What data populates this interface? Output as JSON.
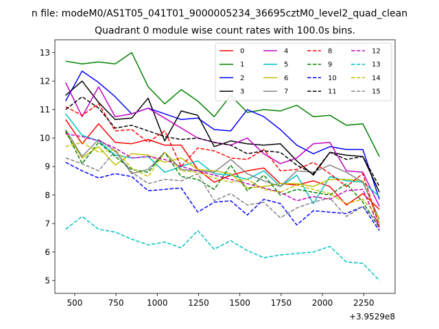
{
  "figure": {
    "suptitle": "n file: modeM0/AS1T05_041T01_9000005234_36695cztM0_level2_quad_clean"
  },
  "chart_data": {
    "type": "line",
    "title": "Quadrant 0 module wise count rates with 100.0s bins.",
    "xlabel": "",
    "ylabel": "",
    "x_offset_label": "+3.9529e8",
    "xlim": [
      380,
      2440
    ],
    "ylim": [
      4.55,
      13.45
    ],
    "x_ticks": [
      500,
      750,
      1000,
      1250,
      1500,
      1750,
      2000,
      2250
    ],
    "y_ticks": [
      5,
      6,
      7,
      8,
      9,
      10,
      11,
      12,
      13
    ],
    "grid": false,
    "legend": {
      "placement": "top-right",
      "columns": 4
    },
    "x": [
      445,
      545,
      645,
      745,
      845,
      945,
      1045,
      1145,
      1245,
      1345,
      1445,
      1545,
      1645,
      1745,
      1845,
      1945,
      2045,
      2145,
      2245,
      2345
    ],
    "series": [
      {
        "name": "0",
        "color": "#ff0000",
        "dash": "solid",
        "values": [
          10.65,
          9.8,
          10.5,
          9.85,
          9.8,
          9.95,
          9.75,
          9.75,
          8.9,
          8.45,
          8.7,
          8.85,
          8.95,
          8.4,
          8.35,
          8.5,
          8.3,
          7.65,
          8.05,
          7.5
        ]
      },
      {
        "name": "1",
        "color": "#008000",
        "dash": "solid",
        "values": [
          12.7,
          12.6,
          12.67,
          12.6,
          13.0,
          11.8,
          11.2,
          11.7,
          11.3,
          10.75,
          11.5,
          10.9,
          11.0,
          10.95,
          11.15,
          10.75,
          10.8,
          10.45,
          10.5,
          9.35
        ]
      },
      {
        "name": "2",
        "color": "#0000ff",
        "dash": "solid",
        "values": [
          11.3,
          12.35,
          11.95,
          11.45,
          10.85,
          11.05,
          10.85,
          10.65,
          10.7,
          10.3,
          10.25,
          11.0,
          10.75,
          10.3,
          9.75,
          9.45,
          9.7,
          9.6,
          9.6,
          7.85
        ]
      },
      {
        "name": "3",
        "color": "#000000",
        "dash": "solid",
        "values": [
          11.5,
          12.0,
          11.25,
          10.65,
          10.7,
          11.4,
          9.9,
          10.95,
          10.8,
          9.7,
          9.9,
          9.8,
          9.75,
          9.8,
          9.2,
          8.7,
          9.5,
          9.4,
          9.35,
          8.1
        ]
      },
      {
        "name": "4",
        "color": "#bf00bf",
        "dash": "solid",
        "values": [
          11.95,
          10.75,
          11.8,
          10.75,
          10.85,
          11.05,
          10.7,
          10.35,
          10.0,
          9.85,
          9.75,
          10.0,
          9.45,
          9.1,
          9.3,
          9.8,
          9.85,
          8.85,
          8.8,
          7.6
        ]
      },
      {
        "name": "5",
        "color": "#00bfbf",
        "dash": "solid",
        "values": [
          10.85,
          10.1,
          9.9,
          9.4,
          9.3,
          9.35,
          8.8,
          9.0,
          9.2,
          8.75,
          8.7,
          8.55,
          8.85,
          8.3,
          8.7,
          7.7,
          8.65,
          8.5,
          8.45,
          7.95
        ]
      },
      {
        "name": "6",
        "color": "#bfbf00",
        "dash": "solid",
        "values": [
          10.2,
          9.3,
          9.7,
          9.05,
          9.45,
          9.4,
          9.15,
          9.3,
          8.9,
          8.85,
          8.75,
          8.25,
          8.3,
          8.4,
          8.4,
          8.3,
          8.55,
          8.55,
          8.5,
          7.0
        ]
      },
      {
        "name": "7",
        "color": "#808080",
        "dash": "solid",
        "values": [
          10.3,
          9.35,
          9.95,
          9.55,
          8.75,
          8.9,
          9.5,
          8.9,
          8.85,
          8.8,
          9.25,
          8.75,
          8.5,
          8.3,
          8.85,
          8.8,
          9.05,
          8.8,
          8.45,
          7.15
        ]
      },
      {
        "name": "8",
        "color": "#ff0000",
        "dash": "dashed",
        "values": [
          11.1,
          10.8,
          11.2,
          10.25,
          10.3,
          9.85,
          10.25,
          9.0,
          9.65,
          9.55,
          9.3,
          9.25,
          9.6,
          8.85,
          8.9,
          9.15,
          8.75,
          8.3,
          8.75,
          6.9
        ]
      },
      {
        "name": "9",
        "color": "#008000",
        "dash": "dashed",
        "values": [
          10.25,
          9.1,
          9.85,
          9.35,
          8.9,
          8.8,
          9.5,
          8.65,
          8.55,
          8.2,
          9.05,
          8.15,
          8.7,
          8.0,
          8.2,
          8.1,
          8.0,
          8.4,
          7.75,
          6.85
        ]
      },
      {
        "name": "10",
        "color": "#0000ff",
        "dash": "dashed",
        "values": [
          9.15,
          8.85,
          8.6,
          8.75,
          8.65,
          8.15,
          8.2,
          8.25,
          7.4,
          7.75,
          7.8,
          7.3,
          7.85,
          7.7,
          6.95,
          7.45,
          7.4,
          7.35,
          7.6,
          6.75
        ]
      },
      {
        "name": "11",
        "color": "#000000",
        "dash": "dashed",
        "values": [
          11.0,
          11.45,
          11.05,
          10.35,
          10.45,
          10.25,
          10.05,
          9.95,
          10.0,
          9.85,
          9.75,
          9.45,
          9.55,
          9.5,
          9.05,
          8.75,
          9.5,
          9.25,
          9.35,
          8.3
        ]
      },
      {
        "name": "12",
        "color": "#bf00bf",
        "dash": "dashed",
        "values": [
          10.15,
          10.05,
          9.9,
          9.65,
          9.3,
          9.35,
          9.25,
          9.0,
          8.85,
          8.7,
          8.55,
          8.4,
          8.25,
          8.1,
          7.8,
          7.95,
          7.85,
          8.15,
          8.2,
          6.85
        ]
      },
      {
        "name": "13",
        "color": "#00bfbf",
        "dash": "dashed",
        "values": [
          6.8,
          7.25,
          6.8,
          6.7,
          6.45,
          6.25,
          6.35,
          6.15,
          6.75,
          6.1,
          6.4,
          6.05,
          5.8,
          5.9,
          5.95,
          6.0,
          6.2,
          5.65,
          5.6,
          5.0
        ]
      },
      {
        "name": "14",
        "color": "#bfbf00",
        "dash": "dashed",
        "values": [
          9.7,
          9.85,
          9.5,
          9.6,
          8.95,
          8.65,
          9.5,
          8.85,
          8.8,
          8.6,
          8.45,
          8.55,
          8.2,
          8.1,
          8.35,
          8.2,
          8.05,
          7.7,
          7.85,
          7.2
        ]
      },
      {
        "name": "15",
        "color": "#808080",
        "dash": "dashed",
        "values": [
          9.3,
          9.1,
          8.85,
          9.55,
          8.8,
          8.4,
          8.55,
          8.5,
          8.75,
          7.8,
          8.05,
          7.65,
          7.75,
          7.2,
          7.55,
          7.75,
          7.9,
          7.25,
          7.6,
          7.0
        ]
      }
    ]
  }
}
